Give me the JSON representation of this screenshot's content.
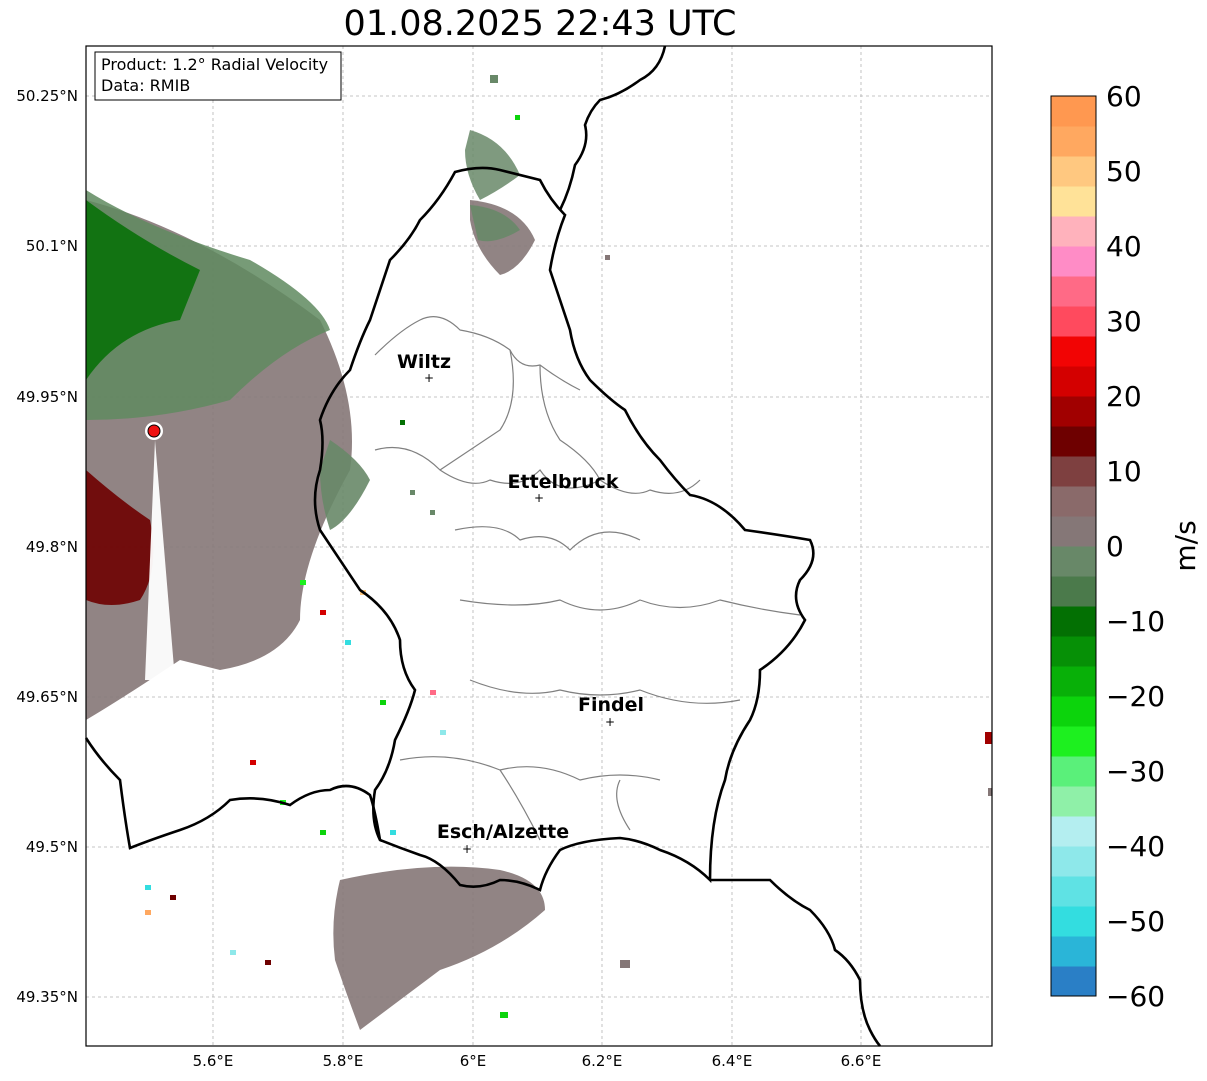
{
  "title": "01.08.2025 22:43 UTC",
  "info_box": {
    "product": "Product: 1.2° Radial Velocity",
    "data_source": "Data: RMIB"
  },
  "map": {
    "lat_ticks": [
      "50.25°N",
      "50.1°N",
      "49.95°N",
      "49.8°N",
      "49.65°N",
      "49.5°N",
      "49.35°N"
    ],
    "lon_ticks": [
      "5.6°E",
      "5.8°E",
      "6°E",
      "6.2°E",
      "6.4°E",
      "6.6°E"
    ],
    "cities": [
      {
        "name": "Wiltz"
      },
      {
        "name": "Ettelbruck"
      },
      {
        "name": "Findel"
      },
      {
        "name": "Esch/Alzette"
      }
    ],
    "radar_marker_color": "#ee1111"
  },
  "colorbar": {
    "label": "m/s",
    "ticks": [
      "60",
      "50",
      "40",
      "30",
      "20",
      "10",
      "0",
      "−10",
      "−20",
      "−30",
      "−40",
      "−50",
      "−60"
    ],
    "range": [
      -60,
      60
    ],
    "colors": [
      "#2a7fc6",
      "#2ab5d8",
      "#33dde0",
      "#5fe2e4",
      "#8ee8ea",
      "#b4eef0",
      "#8ff0a8",
      "#5af07a",
      "#1df01f",
      "#0cd40c",
      "#08b008",
      "#069006",
      "#037003",
      "#4b7a4b",
      "#688868",
      "#857777",
      "#8a6a6a",
      "#7e4040",
      "#6e0000",
      "#a10000",
      "#d40000",
      "#f20404",
      "#ff4a5e",
      "#ff6a86",
      "#ff8cc6",
      "#ffb2bc",
      "#ffe298",
      "#ffc880",
      "#ffa860",
      "#ff9850"
    ]
  }
}
